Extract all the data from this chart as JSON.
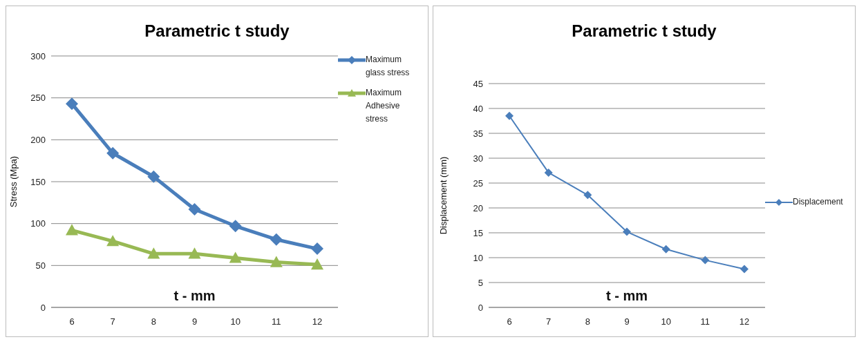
{
  "chart_data": [
    {
      "type": "line",
      "title": "Parametric t study",
      "xlabel": "t - mm",
      "ylabel": "Stress (Mpa)",
      "categories": [
        "6",
        "7",
        "8",
        "9",
        "10",
        "11",
        "12"
      ],
      "ylim": [
        0,
        300
      ],
      "yticks": [
        0,
        50,
        100,
        150,
        200,
        250,
        300
      ],
      "grid": "y",
      "legend": "top right",
      "series": [
        {
          "name": "Maximum glass stress",
          "color": "#4a7ebb",
          "marker": "diamond",
          "values": [
            243,
            184,
            156,
            117,
            97,
            81,
            70
          ]
        },
        {
          "name": "Maximum Adhesive stress",
          "color": "#98b954",
          "marker": "triangle",
          "values": [
            92,
            79,
            64,
            64,
            59,
            54,
            51
          ]
        }
      ]
    },
    {
      "type": "line",
      "title": "Parametric t study",
      "xlabel": "t - mm",
      "ylabel": "Displacement (mm)",
      "categories": [
        "6",
        "7",
        "8",
        "9",
        "10",
        "11",
        "12"
      ],
      "ylim": [
        0,
        45
      ],
      "yticks": [
        0,
        5,
        10,
        15,
        20,
        25,
        30,
        35,
        40,
        45
      ],
      "grid": "y",
      "legend": "right",
      "series": [
        {
          "name": "Displacement",
          "color": "#4a7ebb",
          "marker": "diamond",
          "values": [
            38.5,
            27.1,
            22.6,
            15.2,
            11.7,
            9.5,
            7.7
          ]
        }
      ]
    }
  ]
}
